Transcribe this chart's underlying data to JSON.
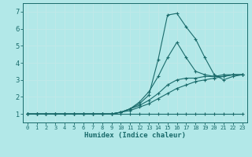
{
  "xlabel": "Humidex (Indice chaleur)",
  "background_color": "#b2e8e8",
  "grid_color": "#d0f0f0",
  "line_color": "#1a6b6b",
  "xlim": [
    -0.5,
    23.5
  ],
  "ylim": [
    0.5,
    7.5
  ],
  "xticks": [
    0,
    1,
    2,
    3,
    4,
    5,
    6,
    7,
    8,
    9,
    10,
    11,
    12,
    13,
    14,
    15,
    16,
    17,
    18,
    19,
    20,
    21,
    22,
    23
  ],
  "yticks": [
    1,
    2,
    3,
    4,
    5,
    6,
    7
  ],
  "lines": [
    {
      "x": [
        0,
        1,
        2,
        3,
        4,
        5,
        6,
        7,
        8,
        9,
        10,
        11,
        12,
        13,
        14,
        15,
        16,
        17,
        18,
        19,
        20,
        21,
        22,
        23
      ],
      "y": [
        1,
        1,
        1,
        1,
        1,
        1,
        1,
        1,
        1,
        1,
        1,
        1,
        1,
        1,
        1,
        1,
        1,
        1,
        1,
        1,
        1,
        1,
        1,
        1
      ]
    },
    {
      "x": [
        0,
        1,
        2,
        3,
        4,
        5,
        6,
        7,
        8,
        9,
        10,
        11,
        12,
        13,
        14,
        15,
        16,
        17,
        18,
        19,
        20,
        21,
        22,
        23
      ],
      "y": [
        1,
        1,
        1,
        1,
        1,
        1,
        1,
        1,
        1,
        1,
        1.1,
        1.2,
        1.4,
        1.6,
        1.9,
        2.2,
        2.5,
        2.7,
        2.9,
        3.0,
        3.1,
        3.2,
        3.3,
        3.3
      ]
    },
    {
      "x": [
        0,
        1,
        2,
        3,
        4,
        5,
        6,
        7,
        8,
        9,
        10,
        11,
        12,
        13,
        14,
        15,
        16,
        17,
        18,
        19,
        20,
        21,
        22,
        23
      ],
      "y": [
        1,
        1,
        1,
        1,
        1,
        1,
        1,
        1,
        1,
        1,
        1.1,
        1.3,
        1.5,
        1.8,
        2.2,
        2.7,
        3.0,
        3.1,
        3.1,
        3.2,
        3.2,
        3.3,
        3.3,
        3.3
      ]
    },
    {
      "x": [
        0,
        1,
        2,
        3,
        4,
        5,
        6,
        7,
        8,
        9,
        10,
        11,
        12,
        13,
        14,
        15,
        16,
        17,
        18,
        19,
        20,
        21,
        22,
        23
      ],
      "y": [
        1,
        1,
        1,
        1,
        1,
        1,
        1,
        1,
        1,
        1,
        1.1,
        1.3,
        1.7,
        2.3,
        3.2,
        4.3,
        5.2,
        4.3,
        3.5,
        3.3,
        3.2,
        3.2,
        3.3,
        3.3
      ]
    },
    {
      "x": [
        0,
        1,
        2,
        3,
        4,
        5,
        6,
        7,
        8,
        9,
        10,
        11,
        12,
        13,
        14,
        15,
        16,
        17,
        18,
        19,
        20,
        21,
        22,
        23
      ],
      "y": [
        1,
        1,
        1,
        1,
        1,
        1,
        1,
        1,
        1,
        1,
        1.1,
        1.3,
        1.6,
        2.1,
        4.2,
        6.8,
        6.9,
        6.1,
        5.4,
        4.3,
        3.3,
        3.0,
        3.2,
        3.3
      ]
    }
  ]
}
